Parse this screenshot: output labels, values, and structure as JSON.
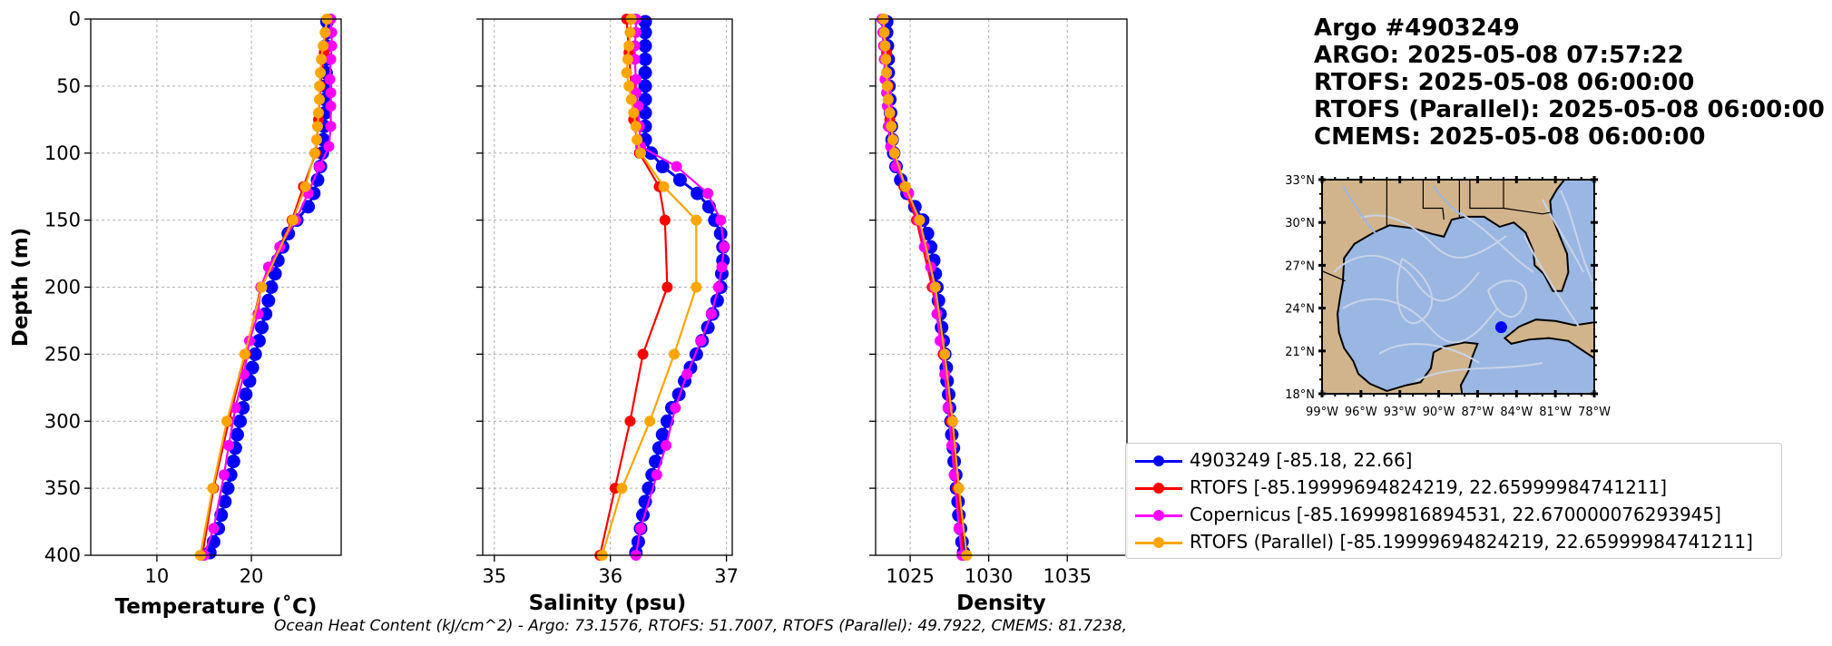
{
  "title": {
    "line1": "Argo #4903249",
    "line2": "ARGO:  2025-05-08 07:57:22",
    "line3": "RTOFS: 2025-05-08 06:00:00",
    "line4": "RTOFS (Parallel): 2025-05-08 06:00:00",
    "line5": "CMEMS: 2025-05-08 06:00:00"
  },
  "footer": "Ocean Heat Content (kJ/cm^2) - Argo: 73.1576,  RTOFS: 51.7007,  RTOFS (Parallel): 49.7922,  CMEMS: 81.7238,",
  "colors": {
    "argo": "#0000ff",
    "rtofs": "#ff0000",
    "copernicus": "#ff00ff",
    "parallel": "#ffa500",
    "land": "#d2b48c",
    "ocean": "#9ab7e3",
    "streamlines": "#c8d3e8"
  },
  "legend": [
    {
      "label": "4903249 [-85.18, 22.66]",
      "color": "#0000ff"
    },
    {
      "label": "RTOFS [-85.19999694824219, 22.65999984741211]",
      "color": "#ff0000"
    },
    {
      "label": "Copernicus [-85.16999816894531, 22.670000076293945]",
      "color": "#ff00ff"
    },
    {
      "label": "RTOFS (Parallel) [-85.19999694824219, 22.65999984741211]",
      "color": "#ffa500"
    }
  ],
  "chart_data": [
    {
      "type": "line",
      "xlabel": "Temperature (˚C)",
      "ylabel": "Depth (m)",
      "xlim": [
        3,
        29.5
      ],
      "ylim": [
        400,
        0
      ],
      "xticks": [
        10,
        20
      ],
      "yticks": [
        0,
        50,
        100,
        150,
        200,
        250,
        300,
        350,
        400
      ],
      "grid": true,
      "series": [
        {
          "name": "4903249",
          "color": "#0000ff",
          "y": [
            2,
            10,
            20,
            30,
            40,
            50,
            60,
            70,
            80,
            90,
            100,
            110,
            120,
            130,
            140,
            150,
            160,
            170,
            180,
            190,
            200,
            210,
            220,
            230,
            240,
            250,
            260,
            270,
            280,
            290,
            300,
            310,
            320,
            330,
            340,
            350,
            360,
            370,
            380,
            390,
            398
          ],
          "x": [
            28.0,
            28.0,
            27.9,
            27.9,
            27.9,
            27.8,
            27.8,
            27.8,
            27.7,
            27.6,
            27.5,
            27.3,
            27.0,
            26.6,
            26.0,
            24.8,
            23.9,
            23.3,
            22.8,
            22.5,
            22.1,
            21.8,
            21.5,
            21.1,
            20.8,
            20.4,
            20.1,
            19.8,
            19.4,
            19.1,
            18.8,
            18.5,
            18.3,
            18.1,
            17.8,
            17.5,
            17.2,
            16.8,
            16.5,
            16.0,
            15.6
          ]
        },
        {
          "name": "RTOFS",
          "color": "#ff0000",
          "y": [
            0,
            25,
            50,
            75,
            100,
            125,
            150,
            200,
            250,
            300,
            350,
            400
          ],
          "x": [
            28.0,
            27.7,
            27.3,
            27.1,
            26.8,
            25.5,
            24.3,
            21.0,
            19.4,
            17.6,
            16.0,
            14.8
          ]
        },
        {
          "name": "Copernicus",
          "color": "#ff00ff",
          "y": [
            0,
            10,
            20,
            30,
            45,
            55,
            65,
            80,
            95,
            110,
            130,
            150,
            170,
            185,
            200,
            220,
            240,
            265,
            290,
            318,
            340,
            380,
            400
          ],
          "x": [
            28.4,
            28.5,
            28.5,
            28.4,
            28.3,
            28.4,
            28.4,
            28.4,
            28.2,
            27.2,
            26.0,
            24.7,
            23.0,
            21.8,
            21.0,
            20.7,
            19.8,
            19.2,
            18.3,
            17.6,
            17.1,
            16.0,
            15.0
          ]
        },
        {
          "name": "RTOFS (Parallel)",
          "color": "#ffa500",
          "y": [
            0,
            10,
            20,
            30,
            40,
            50,
            60,
            70,
            80,
            90,
            100,
            125,
            150,
            200,
            250,
            300,
            350,
            400
          ],
          "x": [
            28.0,
            27.8,
            27.6,
            27.4,
            27.3,
            27.2,
            27.2,
            27.1,
            27.0,
            26.9,
            26.7,
            25.7,
            24.4,
            21.1,
            19.3,
            17.4,
            15.9,
            14.6
          ]
        }
      ]
    },
    {
      "type": "line",
      "xlabel": "Salinity (psu)",
      "ylabel": "",
      "xlim": [
        34.9,
        37.05
      ],
      "ylim": [
        400,
        0
      ],
      "xticks": [
        35,
        36,
        37
      ],
      "yticks": [
        0,
        50,
        100,
        150,
        200,
        250,
        300,
        350,
        400
      ],
      "grid": true,
      "series": [
        {
          "name": "4903249",
          "color": "#0000ff",
          "y": [
            2,
            10,
            20,
            30,
            40,
            50,
            60,
            70,
            80,
            90,
            100,
            110,
            120,
            130,
            140,
            150,
            160,
            170,
            180,
            190,
            200,
            210,
            220,
            230,
            240,
            250,
            260,
            270,
            280,
            290,
            300,
            310,
            320,
            330,
            340,
            350,
            360,
            370,
            380,
            390,
            398
          ],
          "x": [
            36.3,
            36.3,
            36.3,
            36.3,
            36.3,
            36.3,
            36.3,
            36.3,
            36.3,
            36.3,
            36.35,
            36.45,
            36.6,
            36.75,
            36.85,
            36.9,
            36.95,
            36.97,
            36.97,
            36.96,
            36.95,
            36.92,
            36.88,
            36.84,
            36.79,
            36.74,
            36.69,
            36.64,
            36.59,
            36.53,
            36.49,
            36.45,
            36.42,
            36.39,
            36.36,
            36.33,
            36.3,
            36.28,
            36.26,
            36.24,
            36.22
          ]
        },
        {
          "name": "RTOFS",
          "color": "#ff0000",
          "y": [
            0,
            25,
            50,
            75,
            100,
            125,
            150,
            200,
            250,
            300,
            350,
            400
          ],
          "x": [
            36.14,
            36.16,
            36.18,
            36.2,
            36.25,
            36.42,
            36.47,
            36.49,
            36.28,
            36.17,
            36.04,
            35.91
          ]
        },
        {
          "name": "Copernicus",
          "color": "#ff00ff",
          "y": [
            0,
            10,
            20,
            30,
            45,
            55,
            65,
            80,
            95,
            110,
            130,
            150,
            170,
            185,
            200,
            220,
            240,
            265,
            290,
            318,
            340,
            380,
            400
          ],
          "x": [
            36.22,
            36.22,
            36.21,
            36.21,
            36.22,
            36.22,
            36.24,
            36.25,
            36.26,
            36.57,
            36.84,
            36.95,
            36.98,
            36.96,
            36.93,
            36.87,
            36.78,
            36.66,
            36.56,
            36.48,
            36.4,
            36.26,
            36.22
          ]
        },
        {
          "name": "RTOFS (Parallel)",
          "color": "#ffa500",
          "y": [
            0,
            10,
            20,
            30,
            40,
            50,
            60,
            70,
            80,
            90,
            100,
            125,
            150,
            200,
            250,
            300,
            350,
            400
          ],
          "x": [
            36.18,
            36.17,
            36.16,
            36.15,
            36.14,
            36.16,
            36.18,
            36.2,
            36.22,
            36.23,
            36.26,
            36.46,
            36.74,
            36.74,
            36.55,
            36.34,
            36.1,
            35.93
          ]
        }
      ]
    },
    {
      "type": "line",
      "xlabel": "Density",
      "ylabel": "",
      "xlim": [
        1022.8,
        1038.8
      ],
      "ylim": [
        400,
        0
      ],
      "xticks": [
        1025,
        1030,
        1035
      ],
      "yticks": [
        0,
        50,
        100,
        150,
        200,
        250,
        300,
        350,
        400
      ],
      "grid": true,
      "series": [
        {
          "name": "4903249",
          "color": "#0000ff",
          "y": [
            2,
            10,
            20,
            30,
            40,
            50,
            60,
            70,
            80,
            90,
            100,
            110,
            120,
            130,
            140,
            150,
            160,
            170,
            180,
            190,
            200,
            210,
            220,
            230,
            240,
            250,
            260,
            270,
            280,
            290,
            300,
            310,
            320,
            330,
            340,
            350,
            360,
            370,
            380,
            390,
            398
          ],
          "x": [
            1023.5,
            1023.5,
            1023.55,
            1023.6,
            1023.6,
            1023.65,
            1023.7,
            1023.75,
            1023.8,
            1023.85,
            1023.95,
            1024.1,
            1024.4,
            1024.8,
            1025.3,
            1025.8,
            1026.1,
            1026.3,
            1026.5,
            1026.6,
            1026.7,
            1026.8,
            1026.9,
            1027.0,
            1027.1,
            1027.2,
            1027.3,
            1027.35,
            1027.45,
            1027.5,
            1027.6,
            1027.65,
            1027.75,
            1027.8,
            1027.9,
            1027.95,
            1028.05,
            1028.1,
            1028.2,
            1028.3,
            1028.4
          ]
        },
        {
          "name": "RTOFS",
          "color": "#ff0000",
          "y": [
            0,
            25,
            50,
            75,
            100,
            125,
            150,
            200,
            250,
            300,
            350,
            400
          ],
          "x": [
            1023.3,
            1023.5,
            1023.6,
            1023.7,
            1024.0,
            1024.6,
            1025.4,
            1026.4,
            1027.1,
            1027.6,
            1028.0,
            1028.4
          ]
        },
        {
          "name": "Copernicus",
          "color": "#ff00ff",
          "y": [
            0,
            10,
            20,
            30,
            45,
            55,
            65,
            80,
            95,
            110,
            130,
            150,
            170,
            185,
            200,
            220,
            240,
            265,
            290,
            318,
            340,
            380,
            400
          ],
          "x": [
            1023.2,
            1023.25,
            1023.3,
            1023.35,
            1023.4,
            1023.5,
            1023.55,
            1023.6,
            1023.75,
            1024.1,
            1024.9,
            1025.5,
            1025.9,
            1026.3,
            1026.5,
            1026.7,
            1026.9,
            1027.2,
            1027.4,
            1027.65,
            1027.8,
            1028.1,
            1028.3
          ]
        },
        {
          "name": "RTOFS (Parallel)",
          "color": "#ffa500",
          "y": [
            0,
            10,
            20,
            30,
            40,
            50,
            60,
            70,
            80,
            90,
            100,
            125,
            150,
            200,
            250,
            300,
            350,
            400
          ],
          "x": [
            1023.3,
            1023.35,
            1023.4,
            1023.45,
            1023.5,
            1023.55,
            1023.6,
            1023.7,
            1023.8,
            1023.9,
            1024.0,
            1024.7,
            1025.6,
            1026.6,
            1027.2,
            1027.7,
            1028.1,
            1028.6
          ]
        }
      ]
    }
  ],
  "map": {
    "lat_labels": [
      "33°N",
      "30°N",
      "27°N",
      "24°N",
      "21°N",
      "18°N"
    ],
    "lon_labels": [
      "99°W",
      "96°W",
      "93°W",
      "90°W",
      "87°W",
      "84°W",
      "81°W",
      "78°W"
    ],
    "lat_range": [
      18,
      33
    ],
    "lon_range": [
      -99,
      -78
    ],
    "marker": {
      "lon": -85.18,
      "lat": 22.66
    }
  }
}
